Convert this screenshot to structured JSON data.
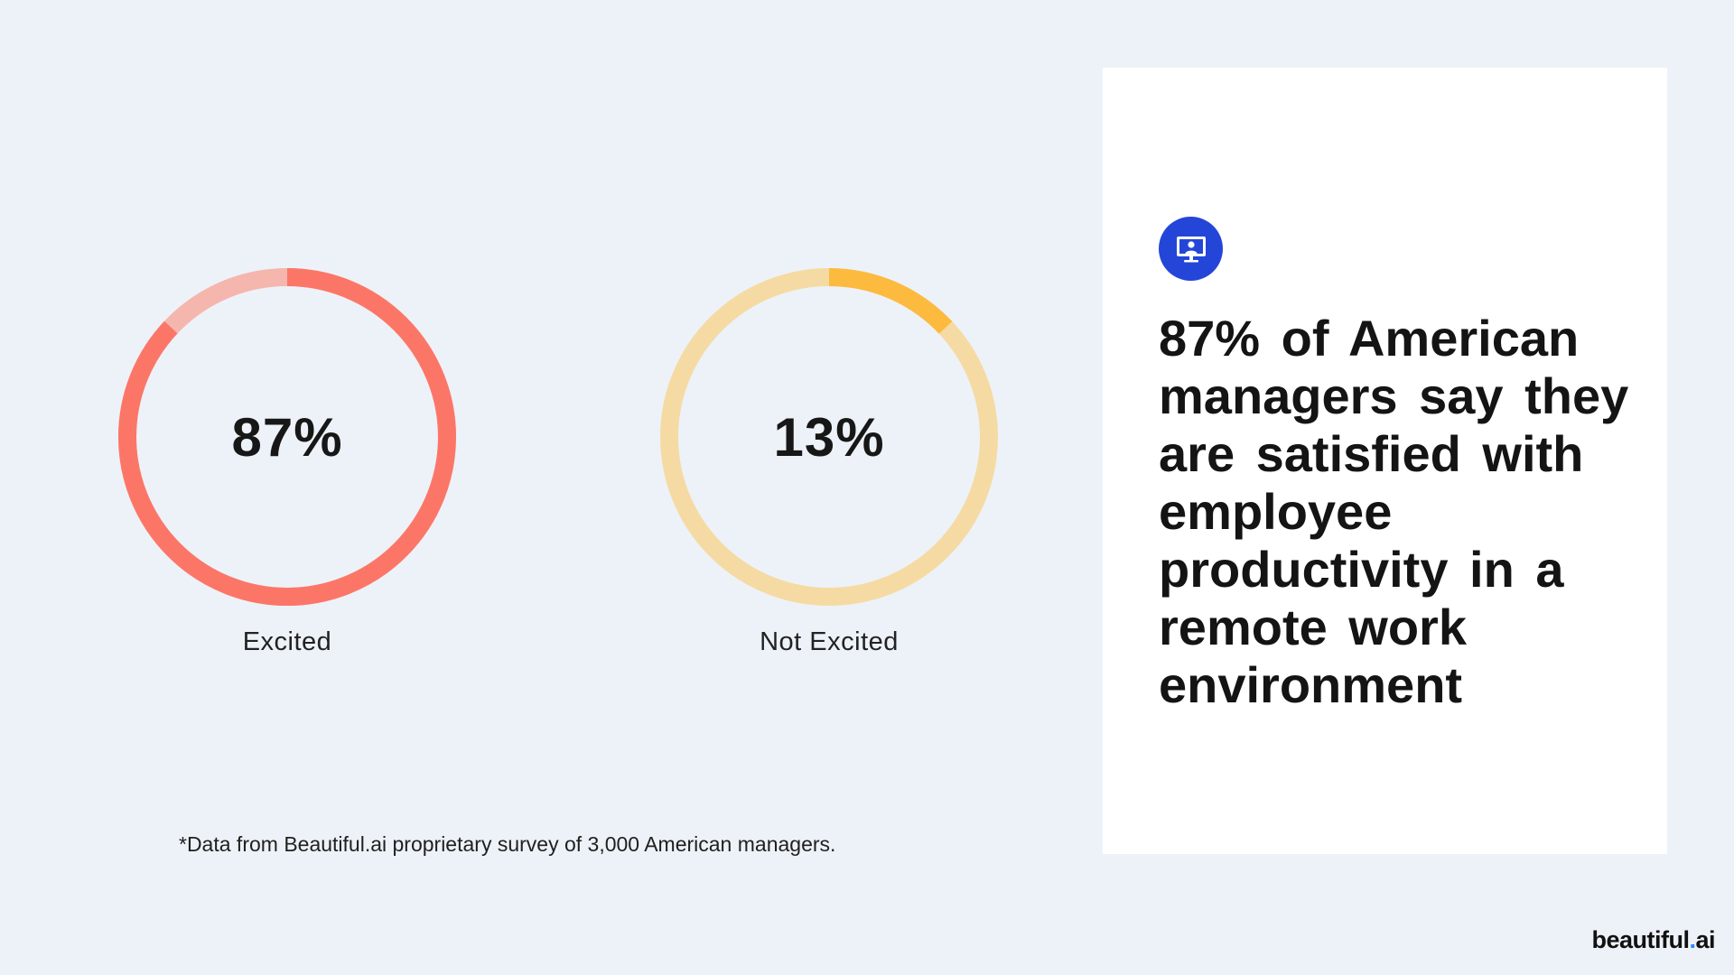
{
  "chart_data": [
    {
      "type": "pie",
      "variant": "donut",
      "value_label": "87%",
      "value": 87,
      "category": "Excited",
      "colors": {
        "fill": "#fc7668",
        "track": "#f5b6ae"
      }
    },
    {
      "type": "pie",
      "variant": "donut",
      "value_label": "13%",
      "value": 13,
      "category": "Not Excited",
      "colors": {
        "fill": "#fcba3f",
        "track": "#f5dba3"
      }
    }
  ],
  "footnote": "*Data from Beautiful.ai proprietary survey of 3,000 American managers.",
  "card": {
    "icon": "computer-user-icon",
    "icon_color": "#2446d8",
    "headline": "87% of American managers say they are satisfied with employee productivity in a remote work environment"
  },
  "brand": {
    "name": "beautiful",
    "dot": ".",
    "suffix": "ai",
    "dot_color": "#2a8cf0"
  }
}
